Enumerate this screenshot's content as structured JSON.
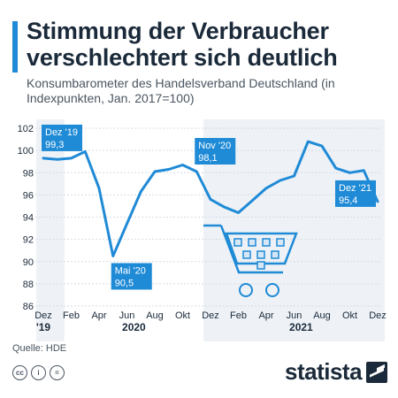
{
  "header": {
    "title": "Stimmung der Verbraucher verschlechtert sich deutlich",
    "subtitle": "Konsumbarometer des Handelsverband Deutschland (in Indexpunkten, Jan. 2017=100)"
  },
  "footer": {
    "source": "Quelle: HDE",
    "brand": "statista",
    "license_icons": [
      "cc-icon",
      "by-icon",
      "nd-icon"
    ]
  },
  "colors": {
    "line": "#1f8ad6",
    "callout": "#1f8ad6",
    "shade": "#eef2f7",
    "grid": "#d4dbe3",
    "text": "#1b2a3a"
  },
  "chart_data": {
    "type": "line",
    "title": "Stimmung der Verbraucher verschlechtert sich deutlich",
    "subtitle": "Konsumbarometer des Handelsverband Deutschland (in Indexpunkten, Jan. 2017=100)",
    "xlabel": "",
    "ylabel": "",
    "ylim": [
      86,
      102
    ],
    "yticks": [
      86,
      88,
      90,
      92,
      94,
      96,
      98,
      100,
      102
    ],
    "grid": true,
    "x": [
      "Dez 2019",
      "Jan 2020",
      "Feb 2020",
      "Mrz 2020",
      "Apr 2020",
      "Mai 2020",
      "Jun 2020",
      "Jul 2020",
      "Aug 2020",
      "Sep 2020",
      "Okt 2020",
      "Nov 2020",
      "Dez 2020",
      "Jan 2021",
      "Feb 2021",
      "Mrz 2021",
      "Apr 2021",
      "Mai 2021",
      "Jun 2021",
      "Jul 2021",
      "Aug 2021",
      "Sep 2021",
      "Okt 2021",
      "Nov 2021",
      "Dez 2021"
    ],
    "series": [
      {
        "values": [
          99.3,
          99.2,
          99.3,
          99.9,
          96.6,
          90.5,
          93.4,
          96.3,
          98.1,
          98.3,
          98.7,
          98.1,
          95.6,
          94.9,
          94.4,
          95.5,
          96.6,
          97.3,
          97.7,
          100.8,
          100.4,
          98.4,
          98.0,
          98.2,
          95.4
        ]
      }
    ],
    "x_tick_labels": [
      "Dez",
      "Feb",
      "Apr",
      "Jun",
      "Aug",
      "Okt",
      "Dez",
      "Feb",
      "Apr",
      "Jun",
      "Aug",
      "Okt",
      "Dez"
    ],
    "x_tick_indices": [
      0,
      2,
      4,
      6,
      8,
      10,
      12,
      14,
      16,
      18,
      20,
      22,
      24
    ],
    "year_labels": [
      {
        "label": "'19",
        "index": 0
      },
      {
        "label": "2020",
        "index": 6.5
      },
      {
        "label": "2021",
        "index": 18.5
      }
    ],
    "shaded_ranges": [
      [
        0,
        1
      ],
      [
        12,
        24
      ]
    ],
    "annotations": [
      {
        "index": 0,
        "month": "Dez '19",
        "value": "99,3",
        "placement": "above"
      },
      {
        "index": 5,
        "month": "Mai '20",
        "value": "90,5",
        "placement": "below"
      },
      {
        "index": 11,
        "month": "Nov '20",
        "value": "98,1",
        "placement": "above"
      },
      {
        "index": 24,
        "month": "Dez '21",
        "value": "95,4",
        "placement": "left"
      }
    ]
  }
}
